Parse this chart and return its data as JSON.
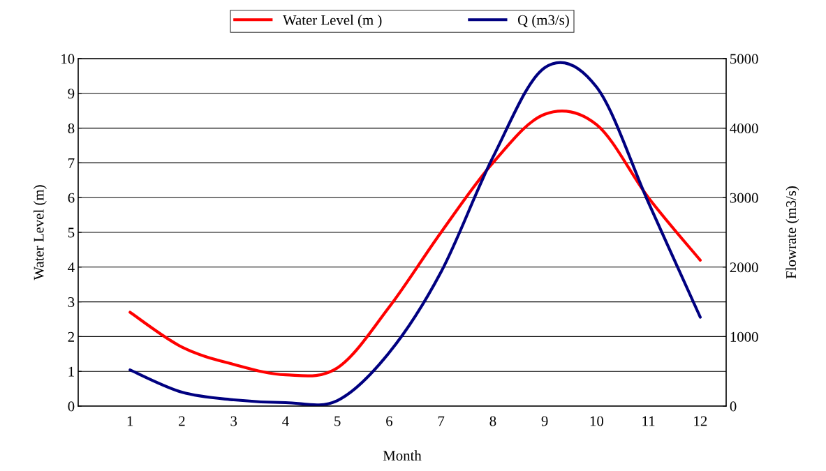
{
  "chart_data": {
    "type": "line",
    "xlabel": "Month",
    "ylabel": "Water Level (m)",
    "y2label": "Flowrate (m3/s)",
    "categories": [
      "1",
      "2",
      "3",
      "4",
      "5",
      "6",
      "7",
      "8",
      "9",
      "10",
      "11",
      "12"
    ],
    "series": [
      {
        "name": "Water Level (m )",
        "color": "#ff0000",
        "values": [
          2.7,
          1.7,
          1.2,
          0.9,
          1.1,
          2.85,
          5.0,
          7.0,
          8.4,
          8.1,
          6.0,
          4.2
        ]
      },
      {
        "name": "Q (m3/s)",
        "color": "#000080",
        "axis": "y2",
        "values": [
          520,
          200,
          90,
          50,
          80,
          770,
          1930,
          3580,
          4870,
          4590,
          2930,
          1280
        ]
      }
    ],
    "ylim": [
      0,
      10
    ],
    "yticks": [
      0,
      1,
      2,
      3,
      4,
      5,
      6,
      7,
      8,
      9,
      10
    ],
    "y2lim": [
      0,
      5000
    ],
    "y2ticks": [
      0,
      1000,
      2000,
      3000,
      4000,
      5000
    ],
    "grid": "y",
    "legend": "top",
    "marker": "none",
    "line_style": "solid"
  }
}
